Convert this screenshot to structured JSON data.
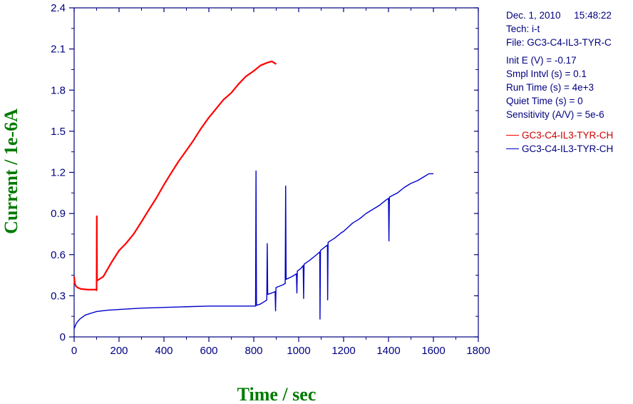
{
  "chart_data": {
    "type": "line",
    "xlabel": "Time / sec",
    "ylabel": "Current / 1e-6A",
    "xlim": [
      0,
      1800
    ],
    "ylim": [
      0,
      2.4
    ],
    "x_ticks": [
      "0",
      "200",
      "400",
      "600",
      "800",
      "1000",
      "1200",
      "1400",
      "1600",
      "1800"
    ],
    "y_ticks": [
      "0",
      "0.3",
      "0.6",
      "0.9",
      "1.2",
      "1.5",
      "1.8",
      "2.1",
      "2.4"
    ],
    "grid": false,
    "series": [
      {
        "name": "GC3-C4-IL3-TYR-CH",
        "color": "#ff0000",
        "points": [
          [
            0,
            0.44
          ],
          [
            3,
            0.39
          ],
          [
            8,
            0.37
          ],
          [
            15,
            0.36
          ],
          [
            30,
            0.35
          ],
          [
            60,
            0.345
          ],
          [
            98,
            0.345
          ],
          [
            100,
            0.34
          ],
          [
            101,
            0.88
          ],
          [
            102,
            0.41
          ],
          [
            130,
            0.44
          ],
          [
            165,
            0.54
          ],
          [
            200,
            0.63
          ],
          [
            230,
            0.68
          ],
          [
            265,
            0.75
          ],
          [
            300,
            0.84
          ],
          [
            330,
            0.92
          ],
          [
            365,
            1.01
          ],
          [
            400,
            1.11
          ],
          [
            430,
            1.19
          ],
          [
            465,
            1.28
          ],
          [
            500,
            1.36
          ],
          [
            530,
            1.43
          ],
          [
            565,
            1.52
          ],
          [
            600,
            1.6
          ],
          [
            630,
            1.66
          ],
          [
            665,
            1.73
          ],
          [
            700,
            1.78
          ],
          [
            730,
            1.84
          ],
          [
            765,
            1.9
          ],
          [
            800,
            1.94
          ],
          [
            830,
            1.98
          ],
          [
            860,
            2.0
          ],
          [
            880,
            2.01
          ],
          [
            900,
            1.99
          ]
        ]
      },
      {
        "name": "GC3-C4-IL3-TYR-CH",
        "color": "#0000cc",
        "points": [
          [
            0,
            0.06
          ],
          [
            10,
            0.1
          ],
          [
            25,
            0.13
          ],
          [
            50,
            0.16
          ],
          [
            100,
            0.185
          ],
          [
            150,
            0.195
          ],
          [
            200,
            0.2
          ],
          [
            300,
            0.21
          ],
          [
            400,
            0.215
          ],
          [
            500,
            0.22
          ],
          [
            600,
            0.225
          ],
          [
            700,
            0.225
          ],
          [
            800,
            0.225
          ],
          [
            808,
            0.225
          ],
          [
            810,
            1.21
          ],
          [
            812,
            0.23
          ],
          [
            830,
            0.24
          ],
          [
            850,
            0.26
          ],
          [
            858,
            0.27
          ],
          [
            860,
            0.68
          ],
          [
            862,
            0.31
          ],
          [
            880,
            0.32
          ],
          [
            895,
            0.33
          ],
          [
            897,
            0.19
          ],
          [
            899,
            0.36
          ],
          [
            930,
            0.38
          ],
          [
            940,
            0.39
          ],
          [
            942,
            1.1
          ],
          [
            944,
            0.42
          ],
          [
            970,
            0.44
          ],
          [
            990,
            0.46
          ],
          [
            992,
            0.32
          ],
          [
            994,
            0.48
          ],
          [
            1010,
            0.5
          ],
          [
            1020,
            0.52
          ],
          [
            1022,
            0.28
          ],
          [
            1024,
            0.53
          ],
          [
            1050,
            0.56
          ],
          [
            1080,
            0.6
          ],
          [
            1094,
            0.62
          ],
          [
            1095,
            0.13
          ],
          [
            1097,
            0.63
          ],
          [
            1120,
            0.66
          ],
          [
            1128,
            0.67
          ],
          [
            1129,
            0.27
          ],
          [
            1131,
            0.69
          ],
          [
            1160,
            0.72
          ],
          [
            1190,
            0.76
          ],
          [
            1200,
            0.77
          ],
          [
            1220,
            0.8
          ],
          [
            1240,
            0.83
          ],
          [
            1270,
            0.86
          ],
          [
            1300,
            0.9
          ],
          [
            1330,
            0.93
          ],
          [
            1360,
            0.96
          ],
          [
            1390,
            1.0
          ],
          [
            1400,
            1.01
          ],
          [
            1402,
            0.7
          ],
          [
            1404,
            1.02
          ],
          [
            1440,
            1.05
          ],
          [
            1470,
            1.09
          ],
          [
            1500,
            1.12
          ],
          [
            1530,
            1.14
          ],
          [
            1560,
            1.17
          ],
          [
            1580,
            1.19
          ],
          [
            1600,
            1.19
          ]
        ]
      }
    ],
    "info": {
      "date_line": "Dec. 1, 2010     15:48:22",
      "tech_line": "Tech: i-t",
      "file_line": "File: GC3-C4-IL3-TYR-C",
      "init_e": "Init E (V) = -0.17",
      "smpl_intvl": "Smpl Intvl (s) = 0.1",
      "run_time": "Run Time (s) = 4e+3",
      "quiet_time": "Quiet Time (s) = 0",
      "sensitivity": "Sensitivity (A/V) = 5e-6"
    },
    "axis_color": "#000080",
    "label_color": "#007a00"
  }
}
